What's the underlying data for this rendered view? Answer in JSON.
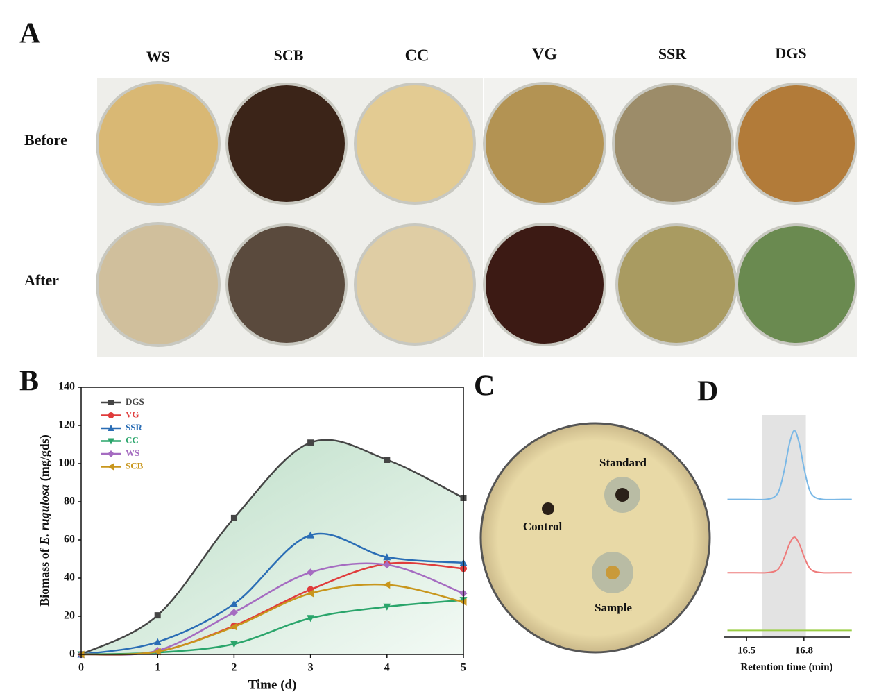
{
  "panel_labels": [
    "A",
    "B",
    "C",
    "D"
  ],
  "panel_a": {
    "columns": [
      "WS",
      "SCB",
      "CC",
      "VG",
      "SSR",
      "DGS"
    ],
    "rows": [
      "Before",
      "After"
    ]
  },
  "panel_c": {
    "wells": [
      "Control",
      "Standard",
      "Sample"
    ]
  },
  "chart_data": [
    {
      "type": "line",
      "xlabel": "Time (d)",
      "ylabel": [
        "Biomass of",
        "E. rugulosa",
        "(mg/gds)"
      ],
      "x": [
        0,
        1,
        2,
        3,
        4,
        5
      ],
      "xlim": [
        0,
        5
      ],
      "xticks": [
        0,
        1,
        2,
        3,
        4,
        5
      ],
      "ylim": [
        0,
        140
      ],
      "yticks": [
        0,
        20,
        40,
        60,
        80,
        100,
        120,
        140
      ],
      "grid": false,
      "legend": "upper left",
      "fill_first_series": true,
      "series": [
        {
          "name": "DGS",
          "color": "#454545",
          "marker": "square",
          "values": [
            0,
            20.5,
            71.5,
            111,
            102,
            82
          ]
        },
        {
          "name": "VG",
          "color": "#e03c3c",
          "marker": "circle",
          "values": [
            0,
            1.5,
            15,
            34,
            47.5,
            45
          ]
        },
        {
          "name": "SSR",
          "color": "#2a6db5",
          "marker": "triangle-up",
          "values": [
            0,
            6.5,
            26.5,
            62.5,
            51,
            48
          ]
        },
        {
          "name": "CC",
          "color": "#2aa56b",
          "marker": "triangle-down",
          "values": [
            0,
            1,
            5.5,
            19,
            25,
            28.5
          ]
        },
        {
          "name": "WS",
          "color": "#a56cc1",
          "marker": "diamond",
          "values": [
            0,
            2,
            22,
            43,
            47,
            32
          ]
        },
        {
          "name": "SCB",
          "color": "#c8961c",
          "marker": "triangle-left",
          "values": [
            0,
            1.5,
            14.5,
            32,
            36.5,
            27.5
          ]
        }
      ]
    },
    {
      "type": "line",
      "xlabel": "Retention time (min)",
      "x": [
        16.4,
        16.5,
        16.6,
        16.65,
        16.675,
        16.7,
        16.725,
        16.75,
        16.775,
        16.8,
        16.825,
        16.85,
        16.9,
        17.0,
        17.05
      ],
      "xlim": [
        16.38,
        17.04
      ],
      "xticks": [
        16.5,
        16.8
      ],
      "ylim": [
        0,
        100
      ],
      "yaxis": false,
      "highlight": [
        16.58,
        16.81
      ],
      "series": [
        {
          "color": "#7ab8e6",
          "values": [
            62,
            62,
            62,
            63.4,
            67.3,
            76.3,
            87.4,
            93,
            87.4,
            76.3,
            67.3,
            63.4,
            62,
            62,
            62
          ]
        },
        {
          "color": "#ee7b7b",
          "values": [
            29,
            29,
            29,
            29.7,
            31.7,
            36.4,
            42.1,
            45,
            42.1,
            36.4,
            31.7,
            29.7,
            29,
            29,
            29
          ]
        },
        {
          "color": "#9acd45",
          "values": [
            3,
            3,
            3,
            3,
            3,
            3,
            3,
            3,
            3,
            3,
            3,
            3,
            3,
            3,
            3
          ]
        }
      ]
    }
  ]
}
